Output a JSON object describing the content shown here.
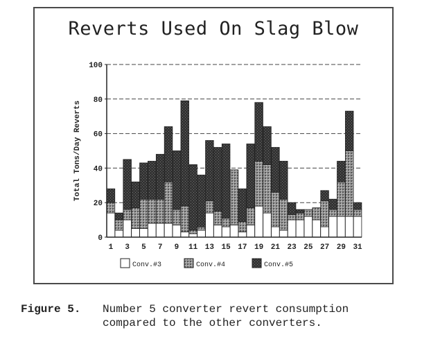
{
  "chart_data": {
    "type": "bar",
    "stacked": true,
    "title": "Reverts Used On Slag Blow",
    "xlabel": "",
    "ylabel": "Total Tons/Day Reverts",
    "ylim": [
      0,
      100
    ],
    "yticks": [
      "0",
      "20",
      "40",
      "60",
      "80",
      "100"
    ],
    "grid": "horizontal dashed",
    "legend_position": "bottom",
    "categories": [
      "1",
      "2",
      "3",
      "4",
      "5",
      "6",
      "7",
      "8",
      "9",
      "10",
      "11",
      "12",
      "13",
      "14",
      "15",
      "16",
      "17",
      "18",
      "19",
      "20",
      "21",
      "22",
      "23",
      "24",
      "25",
      "26",
      "27",
      "28",
      "29",
      "30",
      "31"
    ],
    "x_tick_labels": [
      "1",
      "3",
      "5",
      "7",
      "9",
      "11",
      "13",
      "15",
      "17",
      "19",
      "21",
      "23",
      "25",
      "27",
      "29",
      "31"
    ],
    "series": [
      {
        "name": "Conv.#3",
        "values": [
          14,
          4,
          10,
          5,
          5,
          8,
          8,
          8,
          7,
          3,
          2,
          4,
          14,
          7,
          6,
          7,
          3,
          7,
          18,
          14,
          6,
          4,
          10,
          10,
          12,
          10,
          6,
          12,
          12,
          12,
          12
        ]
      },
      {
        "name": "Conv.#4",
        "values": [
          6,
          6,
          6,
          12,
          17,
          14,
          14,
          24,
          9,
          15,
          2,
          2,
          7,
          8,
          5,
          32,
          6,
          10,
          26,
          28,
          20,
          18,
          3,
          4,
          4,
          7,
          15,
          4,
          20,
          38,
          4
        ]
      },
      {
        "name": "Conv.#5",
        "values": [
          8,
          4,
          29,
          15,
          21,
          22,
          26,
          32,
          34,
          61,
          38,
          30,
          35,
          37,
          43,
          0,
          19,
          37,
          34,
          22,
          26,
          22,
          7,
          2,
          0,
          0,
          6,
          6,
          12,
          23,
          4
        ]
      }
    ],
    "colors": {
      "conv3": "#ffffff",
      "conv4": "#8a8a8a",
      "conv5": "#3a3a3a",
      "axis": "#222222"
    }
  },
  "caption": {
    "label": "Figure 5.",
    "line1": "Number 5 converter revert consumption",
    "line2": "compared to the other converters."
  }
}
